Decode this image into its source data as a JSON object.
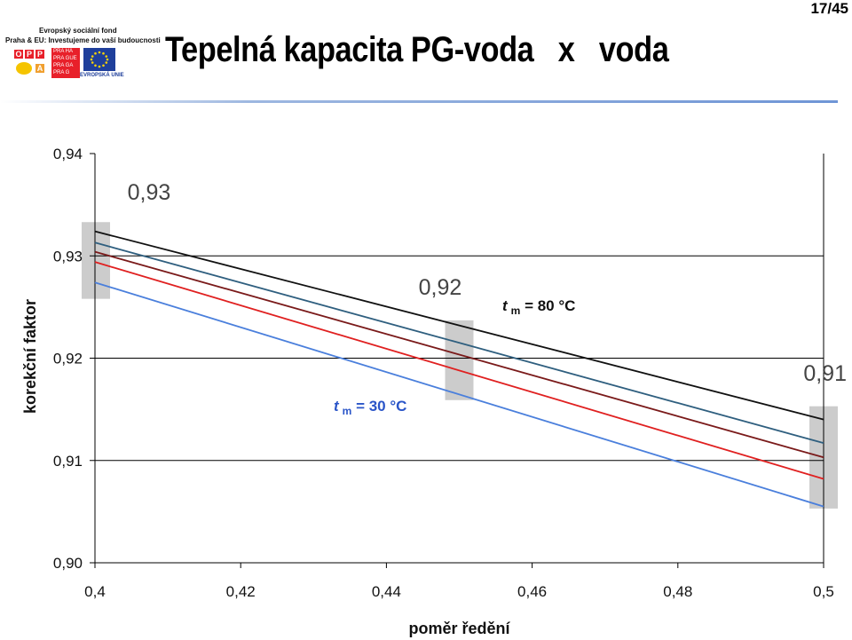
{
  "header": {
    "title": "Tepelná kapacita PG-voda   x   voda",
    "page_number": "17/45",
    "logo": {
      "line1": "Evropský sociální fond",
      "line2": "Praha & EU: Investujeme do vaší budoucnosti",
      "oppa_letters": [
        "O",
        "P",
        "P",
        "A"
      ],
      "praha_rows": [
        "PRA HA",
        "PRA GUE",
        "PRA GA",
        "PRA G"
      ],
      "eu_label": "EVROPSKÁ UNIE"
    }
  },
  "chart_data": {
    "type": "line",
    "title": "",
    "xlabel": "poměr ředění",
    "ylabel": "korekční faktor",
    "xlim": [
      0.4,
      0.5
    ],
    "ylim": [
      0.9,
      0.94
    ],
    "xticks": [
      0.4,
      0.42,
      0.44,
      0.46,
      0.48,
      0.5
    ],
    "xtick_labels": [
      "0,4",
      "0,42",
      "0,44",
      "0,46",
      "0,48",
      "0,5"
    ],
    "yticks": [
      0.9,
      0.91,
      0.92,
      0.93,
      0.94
    ],
    "ytick_labels": [
      "0,90",
      "0,91",
      "0,92",
      "0,93",
      "0,94"
    ],
    "gridlines": [
      0.91,
      0.92,
      0.93
    ],
    "grid": "horizontal",
    "series": [
      {
        "color": "#111111",
        "x": [
          0.4,
          0.5
        ],
        "values": [
          0.9324,
          0.914
        ]
      },
      {
        "color": "#2f5f7f",
        "x": [
          0.4,
          0.5
        ],
        "values": [
          0.9313,
          0.9117
        ]
      },
      {
        "color": "#7a1a1a",
        "x": [
          0.4,
          0.5
        ],
        "values": [
          0.9304,
          0.9103
        ]
      },
      {
        "color": "#e02020",
        "x": [
          0.4,
          0.5
        ],
        "values": [
          0.9294,
          0.9082
        ]
      },
      {
        "color": "#4a7fdc",
        "x": [
          0.4,
          0.5
        ],
        "values": [
          0.9274,
          0.9055
        ]
      }
    ],
    "annotations": [
      {
        "text": "0,93",
        "kind": "value"
      },
      {
        "text": "0,92",
        "kind": "value"
      },
      {
        "text": "0,91",
        "kind": "value"
      }
    ],
    "series_labels": [
      {
        "t": "t",
        "sub": "m",
        "rest": " = 80 °C",
        "color": "#111111"
      },
      {
        "t": "t",
        "sub": "m",
        "rest": " = 30 °C",
        "color": "#2a55c8"
      }
    ],
    "highlights": [
      {
        "x": 0.4,
        "y_range": [
          0.9258,
          0.9333
        ]
      },
      {
        "x": 0.45,
        "y_range": [
          0.9159,
          0.9237
        ]
      },
      {
        "x": 0.5,
        "y_range": [
          0.9053,
          0.9153
        ]
      }
    ],
    "highlight_color": "#cccccc"
  }
}
